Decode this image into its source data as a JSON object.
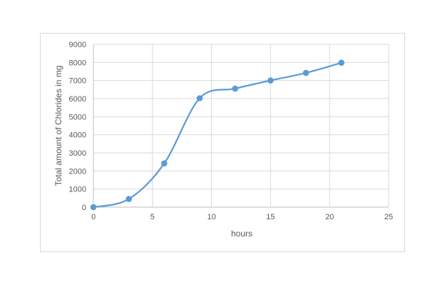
{
  "chart_data": {
    "type": "scatter",
    "title": "",
    "xlabel": "hours",
    "ylabel": "Total amount of Chlorides in mg",
    "xlim": [
      0,
      25
    ],
    "ylim": [
      0,
      9000
    ],
    "xticks": [
      0,
      5,
      10,
      15,
      20,
      25
    ],
    "yticks": [
      0,
      1000,
      2000,
      3000,
      4000,
      5000,
      6000,
      7000,
      8000,
      9000
    ],
    "grid": true,
    "smooth_line": true,
    "legend": "none",
    "series": [
      {
        "color": "#5b9bd5",
        "points": [
          {
            "x": 0,
            "y": 0
          },
          {
            "x": 3,
            "y": 450
          },
          {
            "x": 6,
            "y": 2420
          },
          {
            "x": 9,
            "y": 6020
          },
          {
            "x": 12,
            "y": 6550
          },
          {
            "x": 15,
            "y": 7000
          },
          {
            "x": 18,
            "y": 7420
          },
          {
            "x": 21,
            "y": 7980
          }
        ]
      }
    ]
  }
}
